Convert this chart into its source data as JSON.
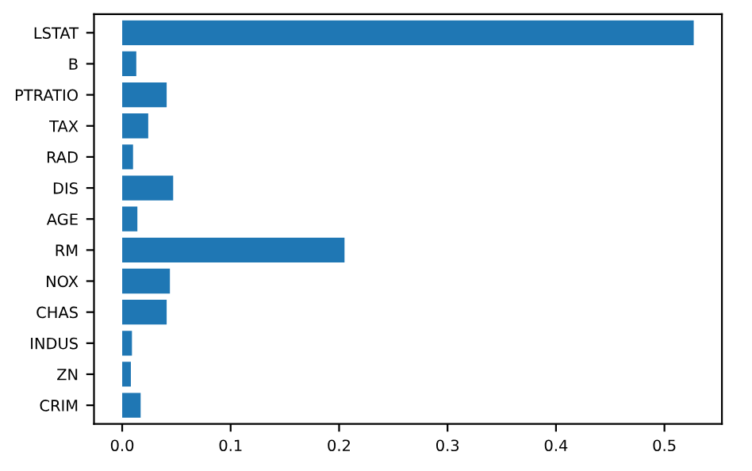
{
  "chart_data": {
    "type": "bar",
    "orientation": "horizontal",
    "categories": [
      "LSTAT",
      "B",
      "PTRATIO",
      "TAX",
      "RAD",
      "DIS",
      "AGE",
      "RM",
      "NOX",
      "CHAS",
      "INDUS",
      "ZN",
      "CRIM"
    ],
    "values": [
      0.527,
      0.013,
      0.041,
      0.024,
      0.01,
      0.047,
      0.014,
      0.205,
      0.044,
      0.041,
      0.009,
      0.008,
      0.017
    ],
    "color": "#1f77b4",
    "xlim": [
      -0.026,
      0.553
    ],
    "xticks": [
      {
        "value": 0,
        "label": "0.0"
      },
      {
        "value": 0.1,
        "label": "0.1"
      },
      {
        "value": 0.2,
        "label": "0.2"
      },
      {
        "value": 0.3,
        "label": "0.3"
      },
      {
        "value": 0.4,
        "label": "0.4"
      },
      {
        "value": 0.5,
        "label": "0.5"
      }
    ],
    "grid": false
  }
}
